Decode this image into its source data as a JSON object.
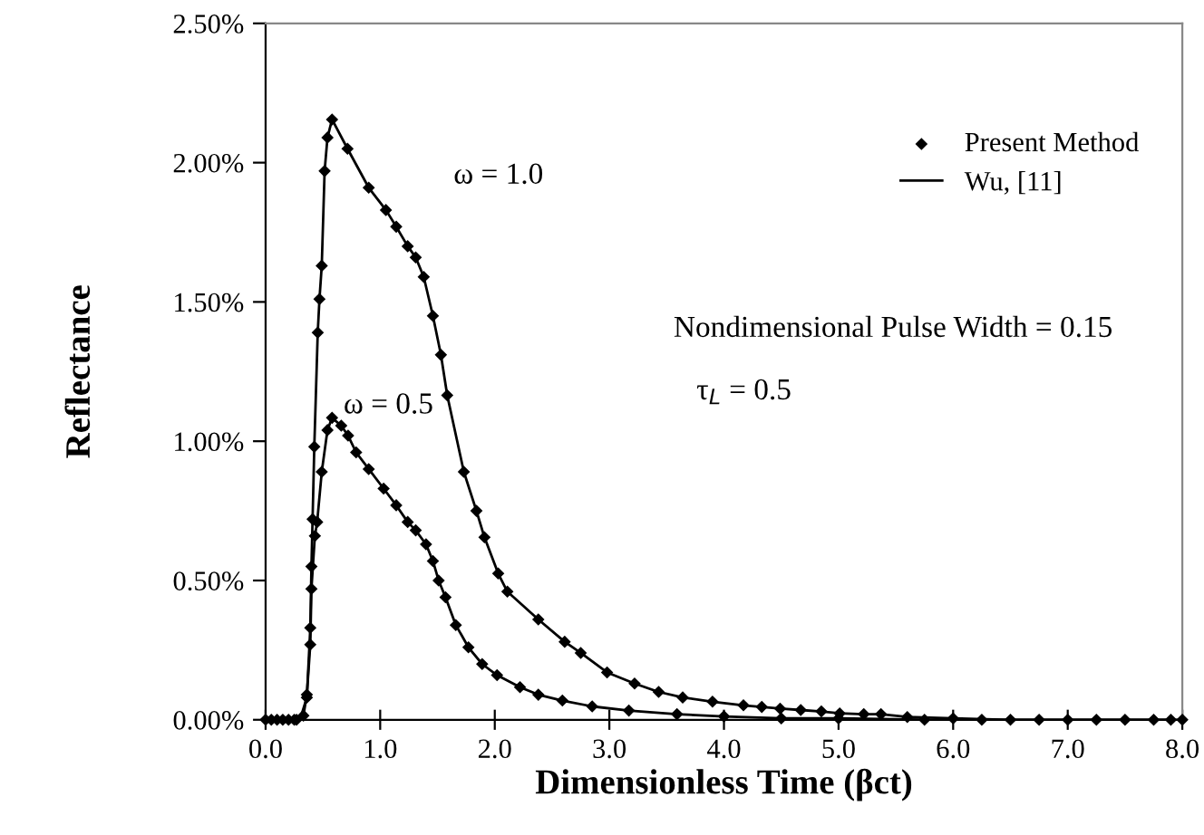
{
  "chart_data": {
    "type": "line",
    "xlabel": "Dimensionless Time (βct)",
    "ylabel": "Reflectance",
    "xlim": [
      0,
      8
    ],
    "xticks": [
      {
        "value": 0,
        "label": "0.0"
      },
      {
        "value": 1,
        "label": "1.0"
      },
      {
        "value": 2,
        "label": "2.0"
      },
      {
        "value": 3,
        "label": "3.0"
      },
      {
        "value": 4,
        "label": "4.0"
      },
      {
        "value": 5,
        "label": "5.0"
      },
      {
        "value": 6,
        "label": "6.0"
      },
      {
        "value": 7,
        "label": "7.0"
      },
      {
        "value": 8,
        "label": "8.0"
      }
    ],
    "ylim": [
      0,
      2.5
    ],
    "yticks": [
      {
        "value": 0,
        "label": "0.00%"
      },
      {
        "value": 0.5,
        "label": "0.50%"
      },
      {
        "value": 1,
        "label": "1.00%"
      },
      {
        "value": 1.5,
        "label": "1.50%"
      },
      {
        "value": 2,
        "label": "2.00%"
      },
      {
        "value": 2.5,
        "label": "2.50%"
      }
    ],
    "grid": false,
    "legend": "top right",
    "annotations": [
      "ω = 1.0",
      "ω = 0.5",
      "Nondimensional Pulse Width = 0.15",
      "τ$_{L}$ = 0.5"
    ],
    "series": [
      {
        "name": "Present Method",
        "type": "scatter",
        "marker": "diamond",
        "color": "#000000",
        "x": [
          0,
          0.1,
          0.2,
          0.27,
          0.36,
          0.39,
          0.4,
          0.41,
          0.425,
          0.455,
          0.47,
          0.49,
          0.515,
          0.54,
          0.58,
          0.715,
          0.9,
          1.05,
          1.14,
          1.24,
          1.31,
          1.38,
          1.46,
          1.53,
          1.585,
          1.73,
          1.84,
          1.91,
          2.03,
          2.11,
          2.38,
          2.61,
          2.75,
          2.98,
          3.22,
          3.43,
          3.64,
          3.9,
          4.17,
          4.33,
          4.49,
          4.67,
          4.85,
          5.01,
          5.22,
          5.37,
          5.6,
          6.0,
          6.5,
          7.0,
          7.5,
          8.0
        ],
        "values": [
          0,
          0,
          0,
          0,
          0.08,
          0.33,
          0.55,
          0.72,
          0.98,
          1.39,
          1.51,
          1.63,
          1.97,
          2.09,
          2.155,
          2.05,
          1.91,
          1.83,
          1.77,
          1.7,
          1.66,
          1.59,
          1.45,
          1.31,
          1.165,
          0.89,
          0.75,
          0.655,
          0.525,
          0.46,
          0.36,
          0.28,
          0.24,
          0.17,
          0.13,
          0.1,
          0.08,
          0.065,
          0.052,
          0.046,
          0.04,
          0.035,
          0.03,
          0.023,
          0.02,
          0.02,
          0.01,
          0.005,
          0,
          0,
          0,
          0
        ]
      },
      {
        "name": "Wu, [11]",
        "color": "#000000",
        "x": [
          0,
          0.1,
          0.2,
          0.3,
          0.36,
          0.39,
          0.4,
          0.41,
          0.425,
          0.455,
          0.47,
          0.49,
          0.515,
          0.54,
          0.58,
          0.715,
          0.9,
          1.05,
          1.14,
          1.24,
          1.31,
          1.38,
          1.46,
          1.53,
          1.585,
          1.73,
          1.84,
          1.91,
          2.03,
          2.11,
          2.38,
          2.61,
          2.75,
          2.98,
          3.22,
          3.43,
          3.64,
          3.9,
          4.17,
          4.33,
          4.49,
          4.67,
          4.85,
          5.01,
          5.22,
          5.37,
          5.6,
          6.0,
          6.5,
          7.0,
          7.5,
          8.0
        ],
        "values": [
          0,
          0,
          0,
          0,
          0.08,
          0.33,
          0.55,
          0.72,
          0.98,
          1.39,
          1.51,
          1.63,
          1.97,
          2.09,
          2.155,
          2.05,
          1.91,
          1.83,
          1.77,
          1.7,
          1.66,
          1.59,
          1.45,
          1.31,
          1.165,
          0.89,
          0.75,
          0.655,
          0.525,
          0.46,
          0.36,
          0.28,
          0.24,
          0.17,
          0.13,
          0.1,
          0.08,
          0.065,
          0.052,
          0.046,
          0.04,
          0.035,
          0.03,
          0.023,
          0.02,
          0.02,
          0.01,
          0.005,
          0,
          0,
          0,
          0
        ]
      },
      {
        "type": "scatter",
        "marker": "diamond",
        "color": "#000000",
        "x": [
          0.05,
          0.15,
          0.25,
          0.33,
          0.36,
          0.39,
          0.4,
          0.43,
          0.45,
          0.49,
          0.54,
          0.58,
          0.66,
          0.72,
          0.79,
          0.9,
          1.03,
          1.14,
          1.24,
          1.31,
          1.4,
          1.46,
          1.51,
          1.57,
          1.66,
          1.77,
          1.89,
          2.02,
          2.22,
          2.38,
          2.59,
          2.85,
          3.17,
          3.59,
          4.0,
          4.5,
          5.0,
          5.75,
          6.25,
          6.75,
          7.25,
          7.75,
          7.9
        ],
        "values": [
          0,
          0,
          0,
          0.015,
          0.09,
          0.27,
          0.47,
          0.66,
          0.71,
          0.89,
          1.04,
          1.084,
          1.056,
          1.02,
          0.96,
          0.9,
          0.83,
          0.77,
          0.71,
          0.68,
          0.63,
          0.57,
          0.5,
          0.44,
          0.34,
          0.26,
          0.2,
          0.16,
          0.117,
          0.09,
          0.069,
          0.048,
          0.033,
          0.02,
          0.012,
          0.005,
          0.005,
          0,
          0,
          0,
          0,
          0,
          0
        ]
      },
      {
        "color": "#000000",
        "x": [
          0.05,
          0.15,
          0.25,
          0.33,
          0.36,
          0.39,
          0.4,
          0.43,
          0.45,
          0.49,
          0.54,
          0.58,
          0.66,
          0.72,
          0.79,
          0.9,
          1.03,
          1.14,
          1.24,
          1.31,
          1.4,
          1.46,
          1.51,
          1.57,
          1.66,
          1.77,
          1.89,
          2.02,
          2.22,
          2.38,
          2.59,
          2.85,
          3.17,
          3.59,
          4.0,
          4.5,
          5.0,
          5.75,
          6.25,
          6.75,
          7.25,
          7.75,
          7.9
        ],
        "values": [
          0,
          0,
          0,
          0.015,
          0.09,
          0.27,
          0.47,
          0.66,
          0.71,
          0.89,
          1.04,
          1.084,
          1.056,
          1.02,
          0.96,
          0.9,
          0.83,
          0.77,
          0.71,
          0.68,
          0.63,
          0.57,
          0.5,
          0.44,
          0.34,
          0.26,
          0.2,
          0.16,
          0.117,
          0.09,
          0.069,
          0.048,
          0.033,
          0.02,
          0.012,
          0.005,
          0.005,
          0,
          0,
          0,
          0,
          0,
          0
        ]
      }
    ]
  }
}
